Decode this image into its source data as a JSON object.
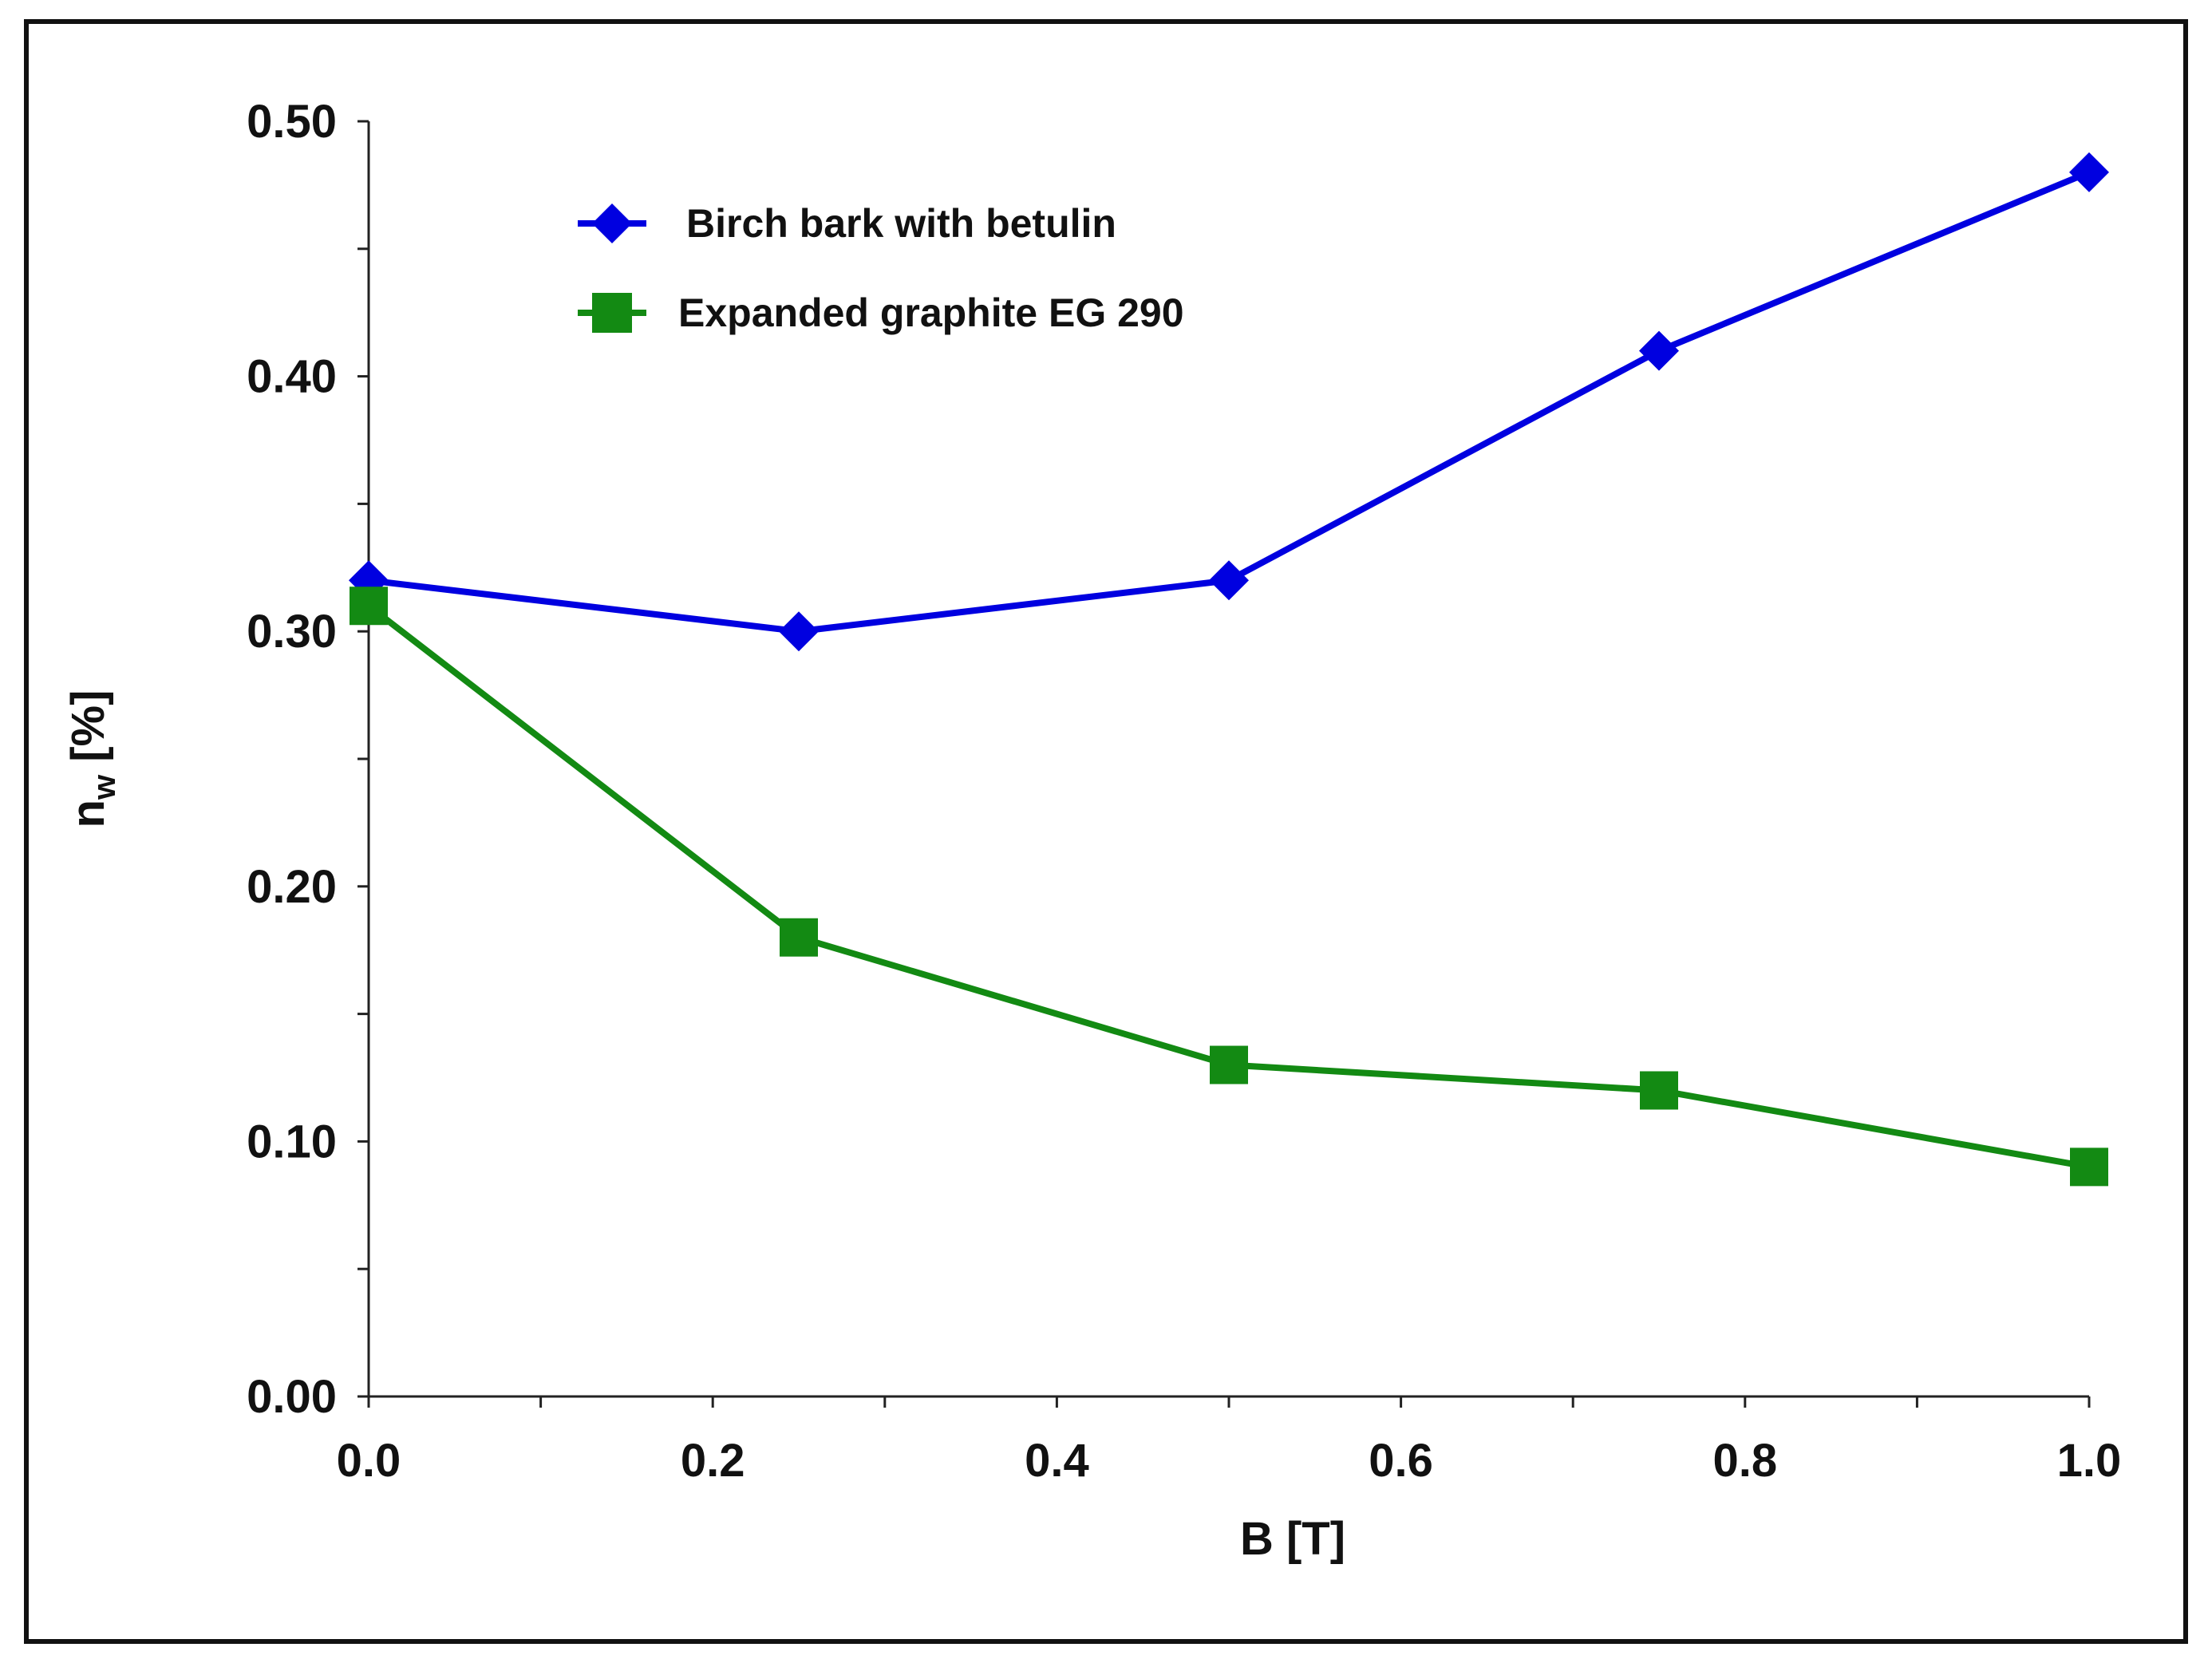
{
  "chart_data": {
    "type": "line",
    "title": "",
    "xlabel": "B [T]",
    "ylabel": {
      "main": "n",
      "subscript": "w",
      "unit": " [%]"
    },
    "xlim": [
      0.0,
      1.0
    ],
    "ylim": [
      0.0,
      0.5
    ],
    "x_ticks": [
      "0.0",
      "0.2",
      "0.4",
      "0.6",
      "0.8",
      "1.0"
    ],
    "x_tick_values": [
      0.0,
      0.2,
      0.4,
      0.6,
      0.8,
      1.0
    ],
    "x_minor_step": 0.1,
    "y_ticks": [
      "0.00",
      "0.10",
      "0.20",
      "0.30",
      "0.40",
      "0.50"
    ],
    "y_tick_values": [
      0.0,
      0.1,
      0.2,
      0.3,
      0.4,
      0.5
    ],
    "y_minor_step": 0.05,
    "grid": false,
    "legend_position": "top-left",
    "x": [
      0.0,
      0.25,
      0.5,
      0.75,
      1.0
    ],
    "series": [
      {
        "name": "Birch bark with betulin",
        "color": "#0000e0",
        "marker": "diamond",
        "values": [
          0.32,
          0.3,
          0.32,
          0.41,
          0.48
        ]
      },
      {
        "name": "Expanded graphite EG 290",
        "color": "#138a13",
        "marker": "square",
        "values": [
          0.31,
          0.18,
          0.13,
          0.12,
          0.09
        ]
      }
    ]
  }
}
